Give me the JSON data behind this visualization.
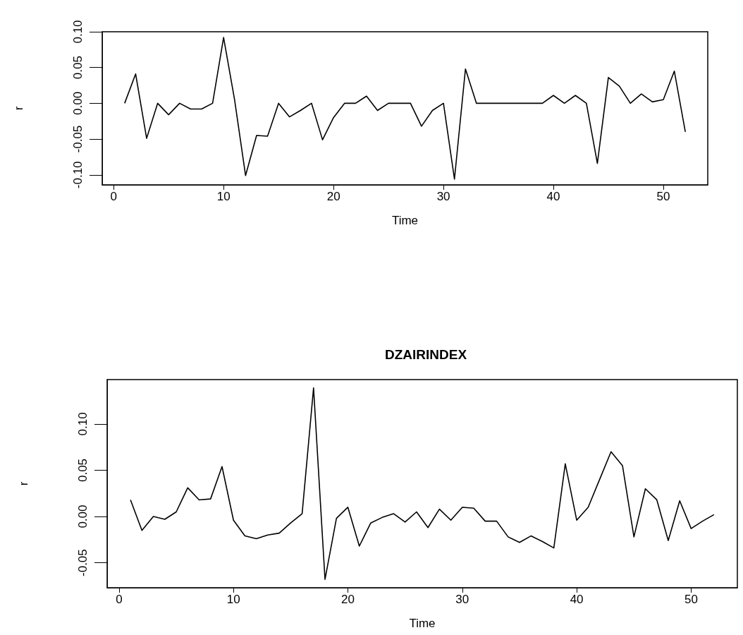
{
  "chart_data": [
    {
      "type": "line",
      "xlabel": "Time",
      "ylabel": "r",
      "x": [
        1,
        2,
        3,
        4,
        5,
        6,
        7,
        8,
        9,
        10,
        11,
        12,
        13,
        14,
        15,
        16,
        17,
        18,
        19,
        20,
        21,
        22,
        23,
        24,
        25,
        26,
        27,
        28,
        29,
        30,
        31,
        32,
        33,
        34,
        35,
        36,
        37,
        38,
        39,
        40,
        41,
        42,
        43,
        44,
        45,
        46,
        47,
        48,
        49,
        50,
        51,
        52
      ],
      "series": [
        {
          "color": "#000000",
          "values": [
            0,
            0.041,
            -0.049,
            0,
            -0.016,
            0,
            -0.008,
            -0.008,
            0,
            0.092,
            0.005,
            -0.101,
            -0.045,
            -0.046,
            0,
            -0.019,
            -0.01,
            0,
            -0.051,
            -0.02,
            0,
            0,
            0.01,
            -0.01,
            0,
            0,
            0,
            -0.032,
            -0.01,
            0,
            -0.106,
            0.048,
            0,
            0,
            0,
            0,
            0,
            0,
            0,
            0.011,
            0,
            0.011,
            0,
            -0.084,
            0.036,
            0.024,
            0,
            0.013,
            0.002,
            0.005,
            0.045,
            -0.04
          ]
        }
      ],
      "xlim": [
        -1.04,
        54.04
      ],
      "xticks": [
        0,
        10,
        20,
        30,
        40,
        50
      ],
      "ylim": [
        -0.114,
        0.1
      ],
      "yticks": [
        {
          "value": -0.1,
          "label": "-0.10"
        },
        {
          "value": -0.05,
          "label": "-0.05"
        },
        {
          "value": 0,
          "label": "0.00"
        },
        {
          "value": 0.05,
          "label": "0.05"
        },
        {
          "value": 0.1,
          "label": "0.10"
        }
      ],
      "grid": false,
      "marker": "none",
      "line_style": "solid"
    },
    {
      "type": "line",
      "title": "DZAIRINDEX",
      "xlabel": "Time",
      "ylabel": "r",
      "x": [
        1,
        2,
        3,
        4,
        5,
        6,
        7,
        8,
        9,
        10,
        11,
        12,
        13,
        14,
        15,
        16,
        17,
        18,
        19,
        20,
        21,
        22,
        23,
        24,
        25,
        26,
        27,
        28,
        29,
        30,
        31,
        32,
        33,
        34,
        35,
        36,
        37,
        38,
        39,
        40,
        41,
        42,
        43,
        44,
        45,
        46,
        47,
        48,
        49,
        50,
        51,
        52
      ],
      "series": [
        {
          "color": "#000000",
          "values": [
            0.018,
            -0.015,
            0,
            -0.003,
            0.005,
            0.031,
            0.018,
            0.019,
            0.054,
            -0.004,
            -0.021,
            -0.024,
            -0.02,
            -0.018,
            -0.007,
            0.003,
            0.139,
            -0.068,
            -0.002,
            0.01,
            -0.032,
            -0.007,
            -0.001,
            0.003,
            -0.006,
            0.005,
            -0.012,
            0.008,
            -0.004,
            0.01,
            0.009,
            -0.005,
            -0.005,
            -0.022,
            -0.028,
            -0.021,
            -0.027,
            -0.034,
            0.057,
            -0.004,
            0.01,
            0.04,
            0.07,
            0.055,
            -0.022,
            0.03,
            0.018,
            -0.026,
            0.017,
            -0.013,
            -0.005,
            0.002
          ]
        }
      ],
      "xlim": [
        -1.04,
        54.04
      ],
      "xticks": [
        0,
        10,
        20,
        30,
        40,
        50
      ],
      "ylim": [
        -0.077,
        0.148
      ],
      "yticks": [
        {
          "value": -0.05,
          "label": "-0.05"
        },
        {
          "value": 0,
          "label": "0.00"
        },
        {
          "value": 0.05,
          "label": "0.05"
        },
        {
          "value": 0.1,
          "label": "0.10"
        }
      ],
      "grid": false,
      "marker": "none",
      "line_style": "solid"
    }
  ]
}
